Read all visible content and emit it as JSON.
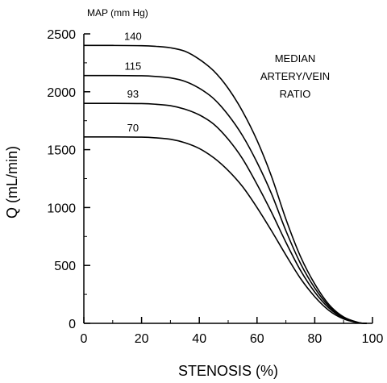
{
  "chart_data": {
    "type": "line",
    "title": "",
    "xlabel": "STENOSIS (%)",
    "ylabel": "Q (mL/min)",
    "xlim": [
      0,
      100
    ],
    "ylim": [
      0,
      2500
    ],
    "xticks": [
      0,
      20,
      40,
      60,
      80,
      100
    ],
    "yticks": [
      0,
      500,
      1000,
      1500,
      2000,
      2500
    ],
    "grid": false,
    "legend_title": "MAP (mm Hg)",
    "annotation": [
      "MEDIAN",
      "ARTERY/VEIN",
      "RATIO"
    ],
    "series": [
      {
        "name": "140",
        "x": [
          0,
          10,
          20,
          25,
          30,
          35,
          40,
          45,
          50,
          55,
          60,
          65,
          70,
          75,
          80,
          85,
          90,
          95,
          98
        ],
        "values": [
          2400,
          2400,
          2398,
          2392,
          2380,
          2350,
          2280,
          2180,
          2030,
          1830,
          1580,
          1270,
          900,
          580,
          340,
          160,
          55,
          8,
          0
        ]
      },
      {
        "name": "115",
        "x": [
          0,
          10,
          20,
          25,
          30,
          35,
          40,
          45,
          50,
          55,
          60,
          65,
          70,
          75,
          80,
          85,
          90,
          95,
          98
        ],
        "values": [
          2140,
          2140,
          2138,
          2132,
          2120,
          2090,
          2030,
          1940,
          1800,
          1620,
          1390,
          1120,
          800,
          520,
          305,
          145,
          50,
          7,
          0
        ]
      },
      {
        "name": "93",
        "x": [
          0,
          10,
          20,
          25,
          30,
          35,
          40,
          45,
          50,
          55,
          60,
          65,
          70,
          75,
          80,
          85,
          90,
          95,
          98
        ],
        "values": [
          1900,
          1900,
          1898,
          1892,
          1880,
          1850,
          1800,
          1720,
          1590,
          1420,
          1200,
          960,
          700,
          460,
          270,
          130,
          45,
          6,
          0
        ]
      },
      {
        "name": "70",
        "x": [
          0,
          10,
          20,
          25,
          30,
          35,
          40,
          45,
          50,
          55,
          60,
          65,
          70,
          75,
          80,
          85,
          90,
          95,
          98
        ],
        "values": [
          1610,
          1610,
          1608,
          1602,
          1590,
          1560,
          1510,
          1430,
          1320,
          1180,
          1000,
          800,
          590,
          390,
          230,
          110,
          38,
          5,
          0
        ]
      }
    ]
  }
}
